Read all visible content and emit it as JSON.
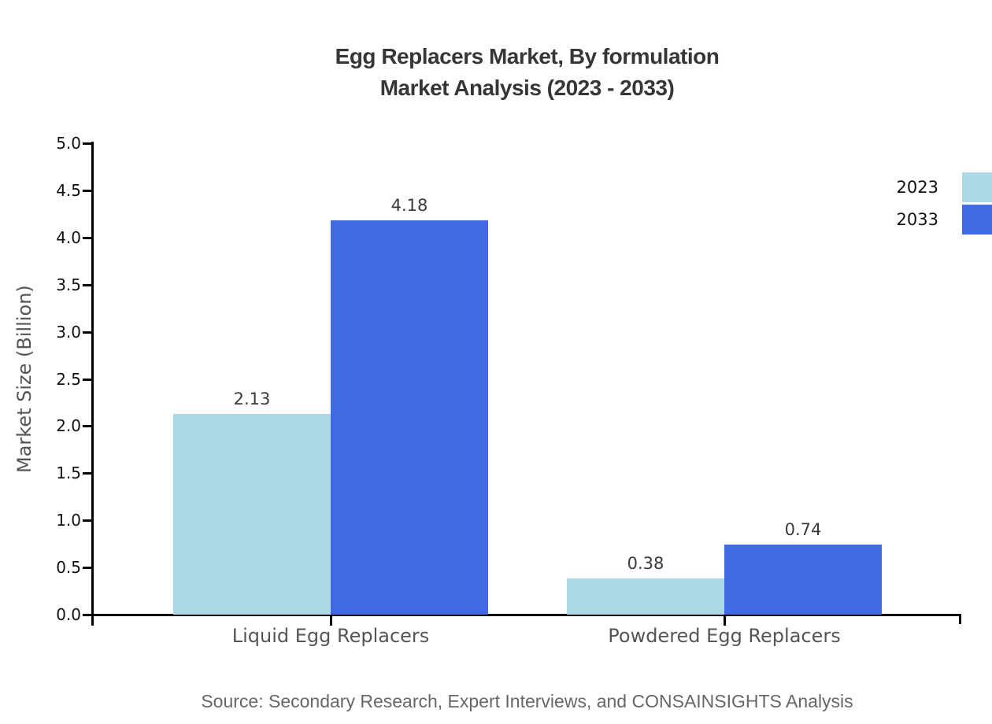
{
  "title": {
    "line1": "Egg Replacers Market, By formulation",
    "line2": "Market Analysis (2023 - 2033)"
  },
  "source": "Source: Secondary Research, Expert Interviews, and CONSAINSIGHTS Analysis",
  "chart_data": {
    "type": "bar",
    "title": "Egg Replacers Market, By formulation Market Analysis (2023 - 2033)",
    "categories": [
      "Liquid Egg Replacers",
      "Powdered Egg Replacers"
    ],
    "series": [
      {
        "name": "2023",
        "color": "#ADD8E6",
        "values": [
          2.13,
          0.38
        ]
      },
      {
        "name": "2033",
        "color": "#4169E1",
        "values": [
          4.18,
          0.74
        ]
      }
    ],
    "value_labels": [
      "2.13",
      "4.18",
      "0.38",
      "0.74"
    ],
    "xlabel": "",
    "ylabel": "Market Size (Billion)",
    "ylim": [
      0,
      5
    ],
    "ytick_step": 0.5,
    "yticks": [
      "5.0",
      "4.5",
      "4.0",
      "3.5",
      "3.0",
      "2.5",
      "2.0",
      "1.5",
      "1.0",
      "0.5",
      "0.0"
    ],
    "grid": false,
    "legend_position": "top-right",
    "background": "#ffffff",
    "axis_color": "#000000",
    "text_colors": {
      "title": "#363636",
      "tick_labels": "#111111",
      "category_labels": "#555555",
      "axis_title": "#555555",
      "value_labels": "#3a3a3a",
      "source": "#676767"
    }
  }
}
